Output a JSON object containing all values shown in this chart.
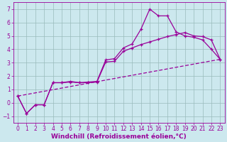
{
  "xlabel": "Windchill (Refroidissement éolien,°C)",
  "xlim": [
    -0.5,
    23.5
  ],
  "ylim": [
    -1.5,
    7.5
  ],
  "xticks": [
    0,
    1,
    2,
    3,
    4,
    5,
    6,
    7,
    8,
    9,
    10,
    11,
    12,
    13,
    14,
    15,
    16,
    17,
    18,
    19,
    20,
    21,
    22,
    23
  ],
  "yticks": [
    -1,
    0,
    1,
    2,
    3,
    4,
    5,
    6,
    7
  ],
  "bg_color": "#cce8ee",
  "line_color": "#990099",
  "grid_color": "#99bbbb",
  "line1_x": [
    0,
    1,
    2,
    3,
    4,
    5,
    6,
    7,
    8,
    9,
    10,
    11,
    12,
    13,
    14,
    15,
    16,
    17,
    18,
    19,
    20,
    21,
    22,
    23
  ],
  "line1_y": [
    0.5,
    -0.8,
    -0.15,
    -0.15,
    1.5,
    1.5,
    1.6,
    1.5,
    1.55,
    1.6,
    3.2,
    3.3,
    4.1,
    4.4,
    5.5,
    7.0,
    6.5,
    6.5,
    5.3,
    5.0,
    4.9,
    4.7,
    4.0,
    3.25
  ],
  "line2_x": [
    0,
    1,
    2,
    3,
    4,
    5,
    6,
    7,
    8,
    9,
    10,
    11,
    12,
    13,
    14,
    15,
    16,
    17,
    18,
    19,
    20,
    21,
    22,
    23
  ],
  "line2_y": [
    0.5,
    -0.8,
    -0.15,
    -0.15,
    1.5,
    1.5,
    1.55,
    1.5,
    1.5,
    1.55,
    3.05,
    3.1,
    3.85,
    4.1,
    4.35,
    4.55,
    4.75,
    4.95,
    5.1,
    5.25,
    5.0,
    4.95,
    4.7,
    3.25
  ],
  "line3_x": [
    0,
    23
  ],
  "line3_y": [
    0.5,
    3.25
  ],
  "font_size": 6.5,
  "tick_font_size": 5.5,
  "xlabel_fontsize": 6.5
}
